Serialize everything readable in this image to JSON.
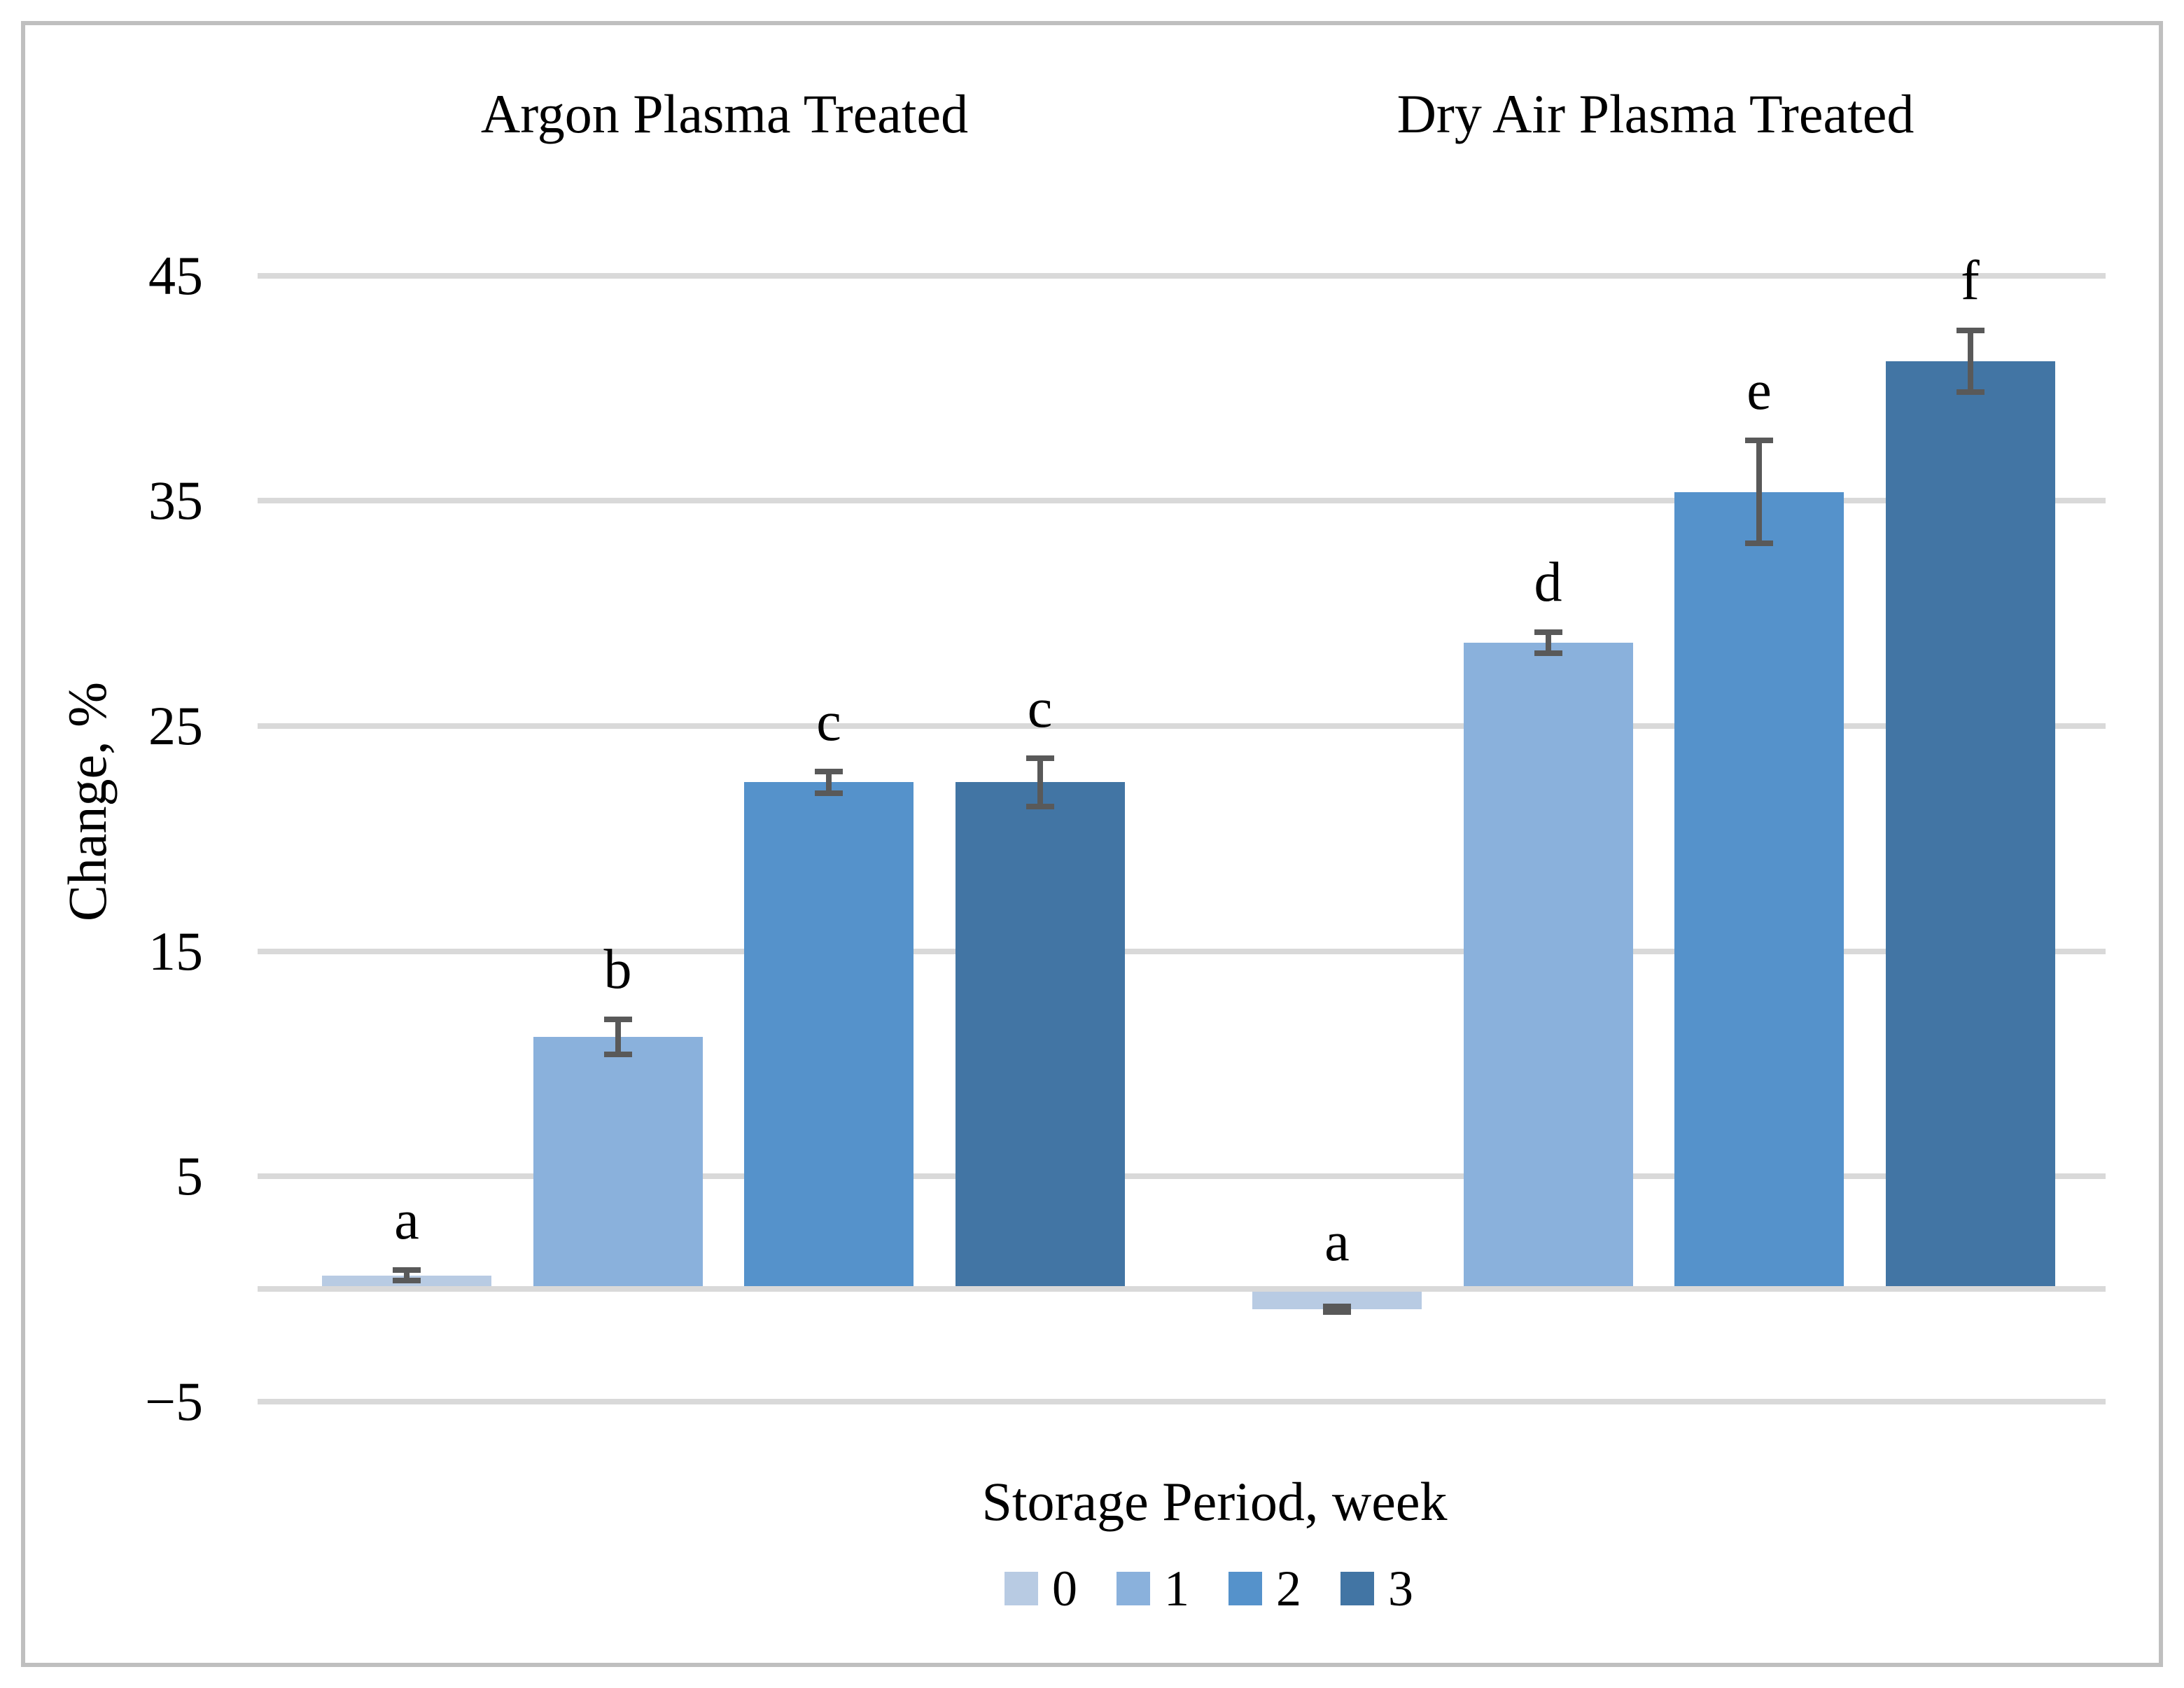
{
  "chart_data": {
    "type": "bar",
    "titles": {
      "group_left": "Argon Plasma Treated",
      "group_right": "Dry Air Plasma Treated"
    },
    "ylabel": "Change, %",
    "xlabel": "Storage Period, week",
    "y_axis": {
      "tick_values": [
        45,
        35,
        25,
        15,
        5,
        -5
      ],
      "tick_labels": [
        "45",
        "35",
        "25",
        "15",
        "5",
        "−5"
      ],
      "ylim": [
        -8,
        50
      ],
      "zero_line": true,
      "grid": "horizontal"
    },
    "legend": {
      "position": "bottom-center",
      "entries": [
        "0",
        "1",
        "2",
        "3"
      ]
    },
    "categories": [
      "0",
      "1",
      "2",
      "3"
    ],
    "series_colors": [
      "#b8cbe3",
      "#8ab1dc",
      "#5592cb",
      "#4275a4"
    ],
    "error_bar_color": "#595959",
    "gridline_color": "#d9d9d9",
    "groups": [
      {
        "name": "Argon Plasma Treated",
        "bars": [
          {
            "week": "0",
            "value": 0.6,
            "error": 0.35,
            "letter": "a"
          },
          {
            "week": "1",
            "value": 11.2,
            "error": 0.9,
            "letter": "b"
          },
          {
            "week": "2",
            "value": 22.5,
            "error": 0.6,
            "letter": "c"
          },
          {
            "week": "3",
            "value": 22.5,
            "error": 1.2,
            "letter": "c"
          }
        ]
      },
      {
        "name": "Dry Air Plasma Treated",
        "bars": [
          {
            "week": "0",
            "value": -0.9,
            "error": 0.25,
            "letter": "a"
          },
          {
            "week": "1",
            "value": 28.7,
            "error": 0.6,
            "letter": "d"
          },
          {
            "week": "2",
            "value": 35.4,
            "error": 2.4,
            "letter": "e"
          },
          {
            "week": "3",
            "value": 41.2,
            "error": 1.5,
            "letter": "f"
          }
        ]
      }
    ]
  }
}
